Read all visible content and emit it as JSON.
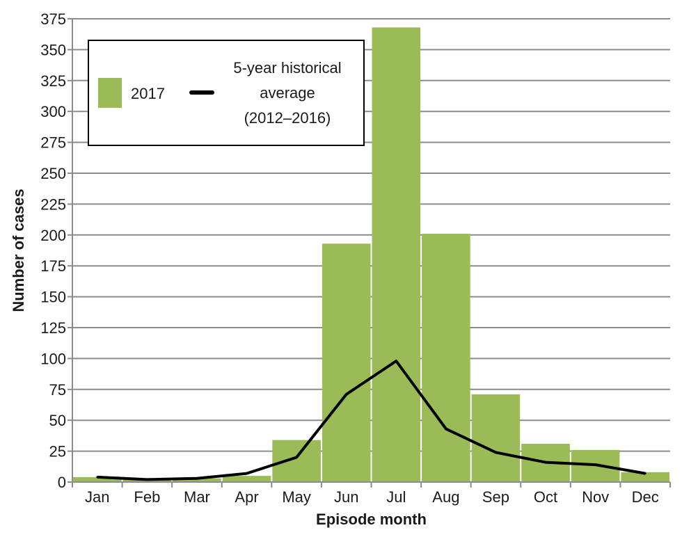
{
  "chart_data": {
    "type": "bar",
    "categories": [
      "Jan",
      "Feb",
      "Mar",
      "Apr",
      "May",
      "Jun",
      "Jul",
      "Aug",
      "Sep",
      "Oct",
      "Nov",
      "Dec"
    ],
    "series": [
      {
        "name": "2017",
        "type": "bar",
        "color": "#9bbb59",
        "values": [
          4,
          2,
          3,
          5,
          34,
          193,
          368,
          201,
          71,
          31,
          26,
          8
        ]
      },
      {
        "name": "5-year historical average (2012–2016)",
        "name_lines": [
          "5-year historical",
          "average",
          "(2012–2016)"
        ],
        "type": "line",
        "color": "#000000",
        "values": [
          4,
          2,
          3,
          7,
          20,
          71,
          98,
          43,
          24,
          16,
          14,
          7
        ]
      }
    ],
    "title": "",
    "xlabel": "Episode month",
    "ylabel": "Number of cases",
    "ylim": [
      0,
      375
    ],
    "yticks": [
      0,
      25,
      50,
      75,
      100,
      125,
      150,
      175,
      200,
      225,
      250,
      275,
      300,
      325,
      350,
      375
    ],
    "grid": true,
    "legend_position": "top-left"
  }
}
